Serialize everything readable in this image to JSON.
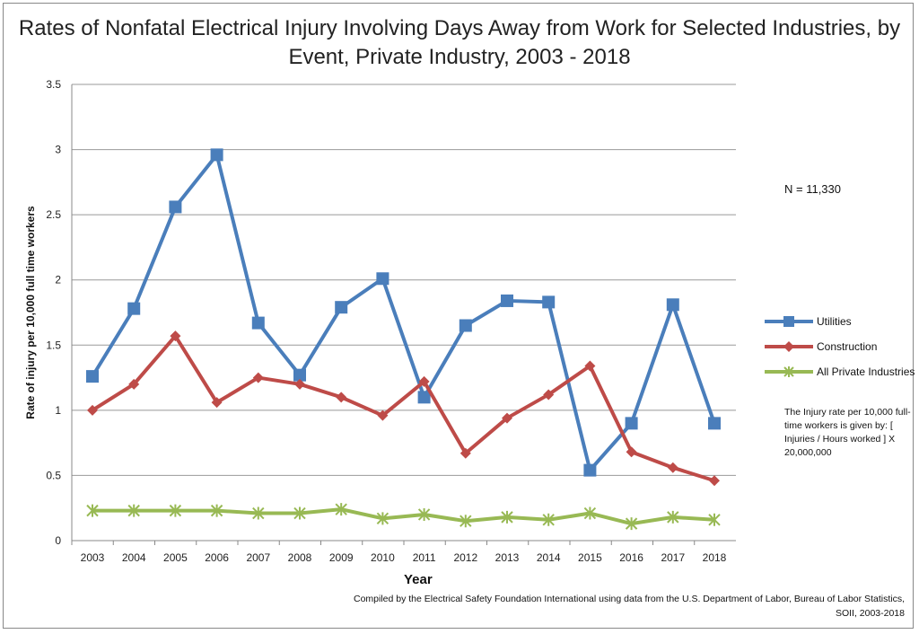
{
  "chart_data": {
    "type": "line",
    "title": "Rates of Nonfatal Electrical Injury Involving Days Away from Work for Selected Industries, by Event, Private Industry, 2003 - 2018",
    "xlabel": "Year",
    "ylabel": "Rate of injury per 10,000 full time workers",
    "ylim": [
      0,
      3.5
    ],
    "yticks": [
      "0",
      "0.5",
      "1",
      "1.5",
      "2",
      "2.5",
      "3",
      "3.5"
    ],
    "grid": "horizontal",
    "legend": "right",
    "categories": [
      "2003",
      "2004",
      "2005",
      "2006",
      "2007",
      "2008",
      "2009",
      "2010",
      "2011",
      "2012",
      "2013",
      "2014",
      "2015",
      "2016",
      "2017",
      "2018"
    ],
    "series": [
      {
        "name": "Utilities",
        "color": "#4a7ebb",
        "marker": "square",
        "values": [
          1.26,
          1.78,
          2.56,
          2.96,
          1.67,
          1.27,
          1.79,
          2.01,
          1.1,
          1.65,
          1.84,
          1.83,
          0.54,
          0.9,
          1.81,
          0.9
        ]
      },
      {
        "name": "Construction",
        "color": "#be4b48",
        "marker": "diamond",
        "values": [
          1.0,
          1.2,
          1.57,
          1.06,
          1.25,
          1.2,
          1.1,
          0.96,
          1.22,
          0.67,
          0.94,
          1.12,
          1.34,
          0.68,
          0.56,
          0.46
        ]
      },
      {
        "name": "All Private Industries",
        "color": "#98b954",
        "marker": "star",
        "values": [
          0.23,
          0.23,
          0.23,
          0.23,
          0.21,
          0.21,
          0.24,
          0.17,
          0.2,
          0.15,
          0.18,
          0.16,
          0.21,
          0.13,
          0.18,
          0.16
        ]
      }
    ],
    "annotations": {
      "n": "N = 11,330",
      "note": "The Injury rate per 10,000 full-time workers is given by: [ Injuries / Hours worked ] X 20,000,000",
      "source": "Compiled by the Electrical Safety Foundation International using data from the U.S. Department of Labor, Bureau of Labor Statistics, SOII, 2003-2018"
    }
  }
}
